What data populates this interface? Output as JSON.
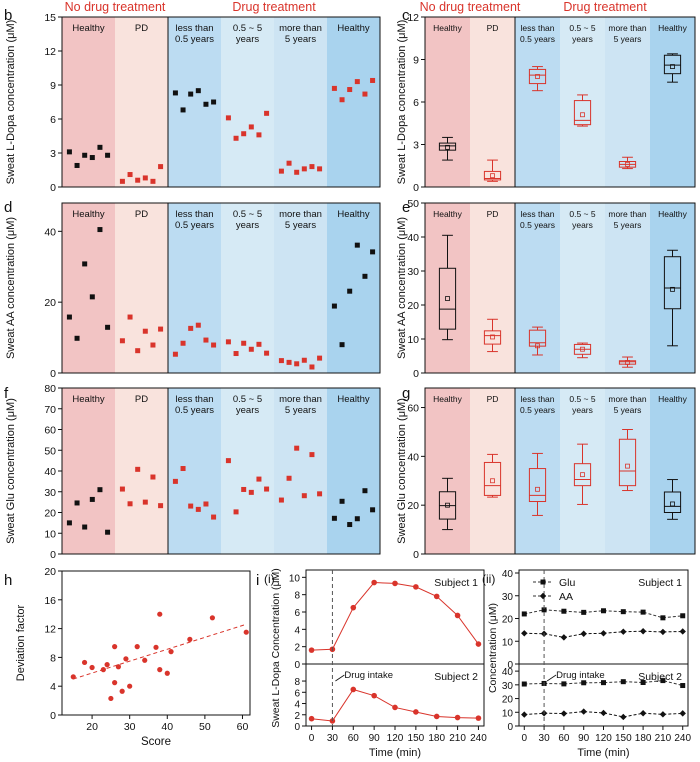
{
  "colors": {
    "healthy_bg": "#f2c4c4",
    "pd_bg": "#f9e3dd",
    "drug1_bg": "#bcdcf2",
    "drug2_bg": "#d6eaf5",
    "drug3_bg": "#cde4f3",
    "drug4_bg": "#a9d3ee",
    "red": "#d9342b",
    "black": "#111111"
  },
  "chart_data": [
    {
      "panel": "b",
      "type": "scatter",
      "ylabel": "Sweat L-Dopa concentration (μM)",
      "ylim": [
        0,
        15
      ],
      "yticks": [
        0,
        3,
        6,
        9,
        12,
        15
      ],
      "headers": [
        "No drug treatment",
        "Drug treatment"
      ],
      "regions": [
        "Healthy",
        "PD",
        "less than\n0.5 years",
        "0.5 ~ 5\nyears",
        "more than\n5 years",
        "Healthy"
      ],
      "series": [
        {
          "region": 0,
          "color": "black",
          "values": [
            3.1,
            1.9,
            2.8,
            2.6,
            3.5,
            2.8
          ]
        },
        {
          "region": 1,
          "color": "red",
          "values": [
            0.5,
            1.1,
            0.6,
            0.8,
            0.5,
            1.8
          ]
        },
        {
          "region": 2,
          "color": "black",
          "values": [
            8.3,
            6.8,
            8.2,
            8.5,
            7.3,
            7.5
          ]
        },
        {
          "region": 3,
          "color": "red",
          "values": [
            6.1,
            4.3,
            4.7,
            5.3,
            4.6,
            6.5
          ]
        },
        {
          "region": 4,
          "color": "red",
          "values": [
            1.4,
            2.1,
            1.3,
            1.6,
            1.8,
            1.6
          ]
        },
        {
          "region": 5,
          "color": "red",
          "values": [
            8.7,
            7.7,
            8.6,
            9.3,
            8.2,
            9.4
          ]
        }
      ]
    },
    {
      "panel": "c",
      "type": "box",
      "ylabel": "Sweat L-Dopa concentration (μM)",
      "ylim": [
        0,
        12
      ],
      "yticks": [
        0,
        3,
        6,
        9,
        12
      ],
      "headers": [
        "No drug treatment",
        "Drug treatment"
      ],
      "regions": [
        "Healthy",
        "PD",
        "less than\n0.5 years",
        "0.5 ~ 5\nyears",
        "more than\n5 years",
        "Healthy"
      ],
      "boxes": [
        {
          "min": 1.9,
          "q1": 2.6,
          "median": 2.9,
          "q3": 3.1,
          "max": 3.5,
          "mean": 2.8,
          "color": "black"
        },
        {
          "min": 0.4,
          "q1": 0.5,
          "median": 0.6,
          "q3": 1.1,
          "max": 1.9,
          "mean": 0.8,
          "color": "red"
        },
        {
          "min": 6.8,
          "q1": 7.3,
          "median": 7.9,
          "q3": 8.3,
          "max": 8.5,
          "mean": 7.8,
          "color": "red"
        },
        {
          "min": 4.3,
          "q1": 4.4,
          "median": 4.7,
          "q3": 6.1,
          "max": 6.5,
          "mean": 5.1,
          "color": "red"
        },
        {
          "min": 1.3,
          "q1": 1.4,
          "median": 1.6,
          "q3": 1.8,
          "max": 2.1,
          "mean": 1.6,
          "color": "red"
        },
        {
          "min": 7.4,
          "q1": 8.0,
          "median": 8.6,
          "q3": 9.3,
          "max": 9.4,
          "mean": 8.5,
          "color": "black"
        }
      ]
    },
    {
      "panel": "d",
      "type": "scatter",
      "ylabel": "Sweat AA concentration (μM)",
      "ylim": [
        0,
        48
      ],
      "yticks": [
        0,
        20,
        40
      ],
      "regions": [
        "Healthy",
        "PD",
        "less than\n0.5 years",
        "0.5 ~ 5\nyears",
        "more than\n5 years",
        "Healthy"
      ],
      "series": [
        {
          "region": 0,
          "color": "black",
          "values": [
            15.8,
            9.8,
            30.8,
            21.5,
            40.5,
            12.9
          ]
        },
        {
          "region": 1,
          "color": "red",
          "values": [
            9.1,
            15.8,
            6.3,
            11.8,
            7.9,
            12.4
          ]
        },
        {
          "region": 2,
          "color": "red",
          "values": [
            5.3,
            8.4,
            12.6,
            13.5,
            9.3,
            7.9
          ]
        },
        {
          "region": 3,
          "color": "red",
          "values": [
            8.8,
            5.5,
            8.4,
            6.7,
            8.1,
            5.6
          ]
        },
        {
          "region": 4,
          "color": "red",
          "values": [
            3.5,
            3.0,
            2.6,
            3.6,
            1.7,
            4.2
          ]
        },
        {
          "region": 5,
          "color": "black",
          "values": [
            18.9,
            8.0,
            23.1,
            36.1,
            27.3,
            34.2
          ]
        }
      ]
    },
    {
      "panel": "e",
      "type": "box",
      "ylabel": "Sweat AA concentration (μM)",
      "ylim": [
        0,
        50
      ],
      "yticks": [
        0,
        10,
        20,
        30,
        40,
        50
      ],
      "regions": [
        "Healthy",
        "PD",
        "less than\n0.5 years",
        "0.5 ~ 5\nyears",
        "more than\n5 years",
        "Healthy"
      ],
      "boxes": [
        {
          "min": 9.8,
          "q1": 12.9,
          "median": 18.8,
          "q3": 30.8,
          "max": 40.5,
          "mean": 21.9,
          "color": "black"
        },
        {
          "min": 6.3,
          "q1": 8.5,
          "median": 11.0,
          "q3": 12.4,
          "max": 15.8,
          "mean": 10.6,
          "color": "red"
        },
        {
          "min": 5.3,
          "q1": 7.9,
          "median": 8.9,
          "q3": 12.6,
          "max": 13.5,
          "mean": 8.0,
          "color": "red"
        },
        {
          "min": 4.5,
          "q1": 5.5,
          "median": 7.0,
          "q3": 8.4,
          "max": 8.8,
          "mean": 7.0,
          "color": "red"
        },
        {
          "min": 1.7,
          "q1": 2.6,
          "median": 3.3,
          "q3": 3.6,
          "max": 4.7,
          "mean": 3.1,
          "color": "red"
        },
        {
          "min": 8.0,
          "q1": 18.9,
          "median": 25.0,
          "q3": 34.2,
          "max": 36.1,
          "mean": 24.6,
          "color": "black"
        }
      ]
    },
    {
      "panel": "f",
      "type": "scatter",
      "ylabel": "Sweat Glu concentration (μM)",
      "ylim": [
        0,
        80
      ],
      "yticks": [
        0,
        10,
        20,
        30,
        40,
        50,
        60,
        70,
        80
      ],
      "regions": [
        "Healthy",
        "PD",
        "less than\n0.5 years",
        "0.5 ~ 5\nyears",
        "more than\n5 years",
        "Healthy"
      ],
      "series": [
        {
          "region": 0,
          "color": "black",
          "values": [
            15.0,
            24.6,
            13.0,
            26.3,
            31.0,
            10.5
          ]
        },
        {
          "region": 1,
          "color": "red",
          "values": [
            31.3,
            24.2,
            40.8,
            25.0,
            37.1,
            23.3
          ]
        },
        {
          "region": 2,
          "color": "red",
          "values": [
            35.0,
            41.2,
            23.1,
            21.5,
            24.1,
            17.8
          ]
        },
        {
          "region": 3,
          "color": "red",
          "values": [
            45.0,
            20.3,
            31.1,
            29.7,
            36.1,
            31.3
          ]
        },
        {
          "region": 4,
          "color": "red",
          "values": [
            26.0,
            36.5,
            51.0,
            28.1,
            47.9,
            29.0
          ]
        },
        {
          "region": 5,
          "color": "black",
          "values": [
            17.2,
            25.4,
            14.2,
            17.0,
            30.5,
            21.3
          ]
        }
      ]
    },
    {
      "panel": "g",
      "type": "box",
      "ylabel": "Sweat Glu concentration (μM)",
      "ylim": [
        0,
        68
      ],
      "yticks": [
        0,
        20,
        40,
        60
      ],
      "regions": [
        "Healthy",
        "PD",
        "less than\n0.5 years",
        "0.5 ~ 5\nyears",
        "more than\n5 years",
        "Healthy"
      ],
      "boxes": [
        {
          "min": 10.0,
          "q1": 14.3,
          "median": 19.8,
          "q3": 25.5,
          "max": 31.0,
          "mean": 20.0,
          "color": "black"
        },
        {
          "min": 23.3,
          "q1": 24.0,
          "median": 28.0,
          "q3": 37.5,
          "max": 40.8,
          "mean": 30.0,
          "color": "red"
        },
        {
          "min": 15.8,
          "q1": 21.5,
          "median": 24.0,
          "q3": 35.0,
          "max": 41.2,
          "mean": 26.5,
          "color": "red"
        },
        {
          "min": 20.3,
          "q1": 28.0,
          "median": 30.5,
          "q3": 37.0,
          "max": 45.0,
          "mean": 32.5,
          "color": "red"
        },
        {
          "min": 26.0,
          "q1": 28.0,
          "median": 34.0,
          "q3": 47.0,
          "max": 51.0,
          "mean": 36.0,
          "color": "red"
        },
        {
          "min": 14.2,
          "q1": 17.0,
          "median": 19.5,
          "q3": 25.4,
          "max": 30.5,
          "mean": 20.5,
          "color": "black"
        }
      ]
    },
    {
      "panel": "h",
      "type": "scatter",
      "xlabel": "Score",
      "ylabel": "Deviation factor",
      "xlim": [
        12,
        62
      ],
      "ylim": [
        0,
        20
      ],
      "xticks": [
        20,
        30,
        40,
        50,
        60
      ],
      "yticks": [
        0,
        4,
        8,
        12,
        16,
        20
      ],
      "points": [
        [
          15,
          5.3
        ],
        [
          18,
          7.3
        ],
        [
          20,
          6.6
        ],
        [
          23,
          6.3
        ],
        [
          24,
          7.0
        ],
        [
          25,
          2.3
        ],
        [
          26,
          9.5
        ],
        [
          26,
          4.5
        ],
        [
          27,
          6.7
        ],
        [
          28,
          3.3
        ],
        [
          29,
          7.8
        ],
        [
          30,
          4.0
        ],
        [
          32,
          9.5
        ],
        [
          34,
          7.6
        ],
        [
          37,
          9.4
        ],
        [
          38,
          6.3
        ],
        [
          38,
          14.0
        ],
        [
          40,
          5.8
        ],
        [
          41,
          8.8
        ],
        [
          46,
          10.5
        ],
        [
          52,
          13.5
        ],
        [
          61,
          11.5
        ]
      ],
      "fit": [
        [
          15,
          5.0
        ],
        [
          61,
          12.6
        ]
      ]
    },
    {
      "panel": "i(i)",
      "type": "line",
      "xlabel": "Time (min)",
      "ylabel": "Sweat L-Dopa Concentration (μM)",
      "x": [
        0,
        30,
        60,
        90,
        120,
        150,
        180,
        210,
        240
      ],
      "xlim": [
        -8,
        248
      ],
      "subplots": [
        {
          "name": "Subject 1",
          "ylim": [
            0,
            10.5
          ],
          "yticks": [
            0,
            2,
            4,
            6,
            8,
            10
          ],
          "values": [
            1.6,
            1.7,
            6.5,
            9.4,
            9.3,
            8.9,
            7.8,
            5.6,
            2.3
          ]
        },
        {
          "name": "Subject 2",
          "ylim": [
            0,
            10.5
          ],
          "yticks": [
            0,
            2,
            4,
            6,
            8
          ],
          "values": [
            1.3,
            0.9,
            6.5,
            5.4,
            3.3,
            2.5,
            1.7,
            1.5,
            1.4
          ]
        }
      ],
      "annotation": "Drug intake"
    },
    {
      "panel": "i(ii)",
      "type": "line",
      "xlabel": "Time (min)",
      "ylabel": "Concentration (μM)",
      "x": [
        0,
        30,
        60,
        90,
        120,
        150,
        180,
        210,
        240
      ],
      "xlim": [
        -8,
        248
      ],
      "legend": [
        "Glu",
        "AA"
      ],
      "subplots": [
        {
          "name": "Subject 1",
          "ylim": [
            0,
            40
          ],
          "yticks": [
            0,
            10,
            20,
            30,
            40
          ],
          "glu": [
            22.0,
            23.8,
            23.2,
            22.7,
            23.4,
            23.0,
            22.8,
            20.3,
            21.2
          ],
          "aa": [
            13.5,
            13.3,
            11.7,
            13.3,
            13.5,
            14.2,
            14.4,
            14.1,
            14.3
          ]
        },
        {
          "name": "Subject 2",
          "ylim": [
            0,
            43
          ],
          "yticks": [
            0,
            10,
            20,
            30,
            40
          ],
          "glu": [
            30.6,
            31.0,
            30.7,
            31.5,
            31.6,
            32.3,
            31.7,
            33.1,
            29.5
          ],
          "aa": [
            8.3,
            9.3,
            9.1,
            10.5,
            9.5,
            6.6,
            9.3,
            8.5,
            9.2
          ]
        }
      ],
      "annotation": "Drug intake"
    }
  ],
  "labels": {
    "panel_letters": [
      "b",
      "c",
      "d",
      "e",
      "f",
      "g",
      "h",
      "i",
      "(i)",
      "(ii)"
    ]
  }
}
